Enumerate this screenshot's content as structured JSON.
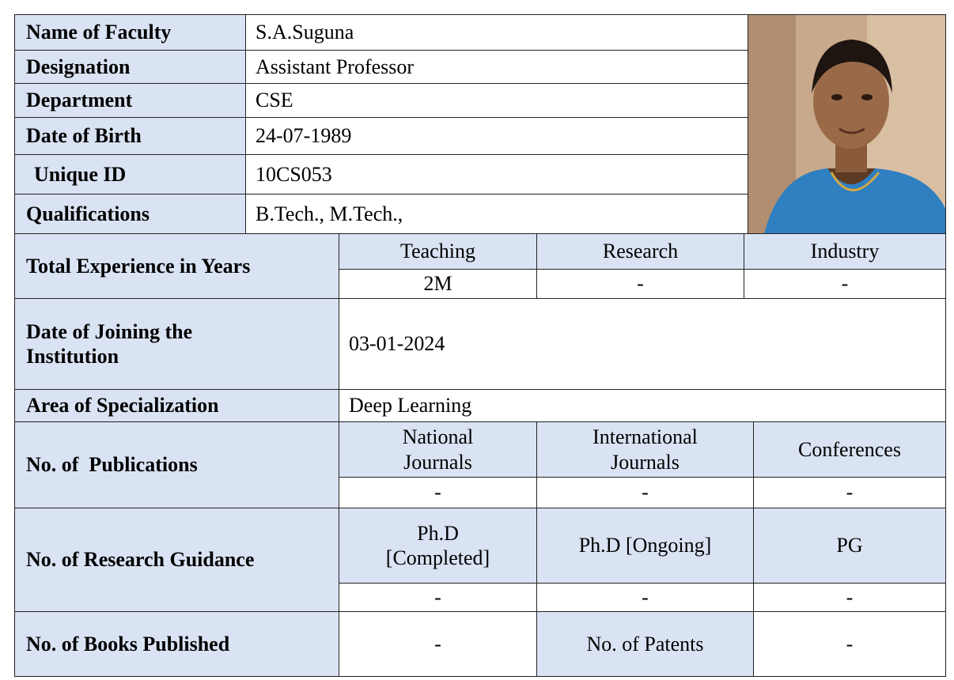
{
  "profile": [
    {
      "label": "Name of Faculty",
      "value": "S.A.Suguna"
    },
    {
      "label": "Designation",
      "value": "Assistant Professor"
    },
    {
      "label": "Department",
      "value": "CSE"
    },
    {
      "label": "Date of Birth",
      "value": "24-07-1989"
    },
    {
      "label": "Unique ID",
      "value": "10CS053"
    },
    {
      "label": "Qualifications",
      "value": "B.Tech., M.Tech.,"
    }
  ],
  "experience": {
    "label": "Total Experience in Years",
    "headers": [
      "Teaching",
      "Research",
      "Industry"
    ],
    "values": [
      "2M",
      "-",
      "-"
    ]
  },
  "joining": {
    "label": "Date of Joining the Institution",
    "value": "03-01-2024"
  },
  "specialization": {
    "label": "Area of Specialization",
    "value": "Deep Learning"
  },
  "publications": {
    "label": "No. of  Publications",
    "headers": [
      "National Journals",
      "International Journals",
      "Conferences"
    ],
    "values": [
      "-",
      "-",
      "-"
    ]
  },
  "guidance": {
    "label": "No. of Research Guidance",
    "headers": [
      "Ph.D [Completed]",
      "Ph.D [Ongoing]",
      "PG"
    ],
    "values": [
      "-",
      "-",
      "-"
    ]
  },
  "books": {
    "label": "No. of Books Published",
    "value": "-",
    "patents_label": "No. of Patents",
    "patents_value": "-"
  }
}
